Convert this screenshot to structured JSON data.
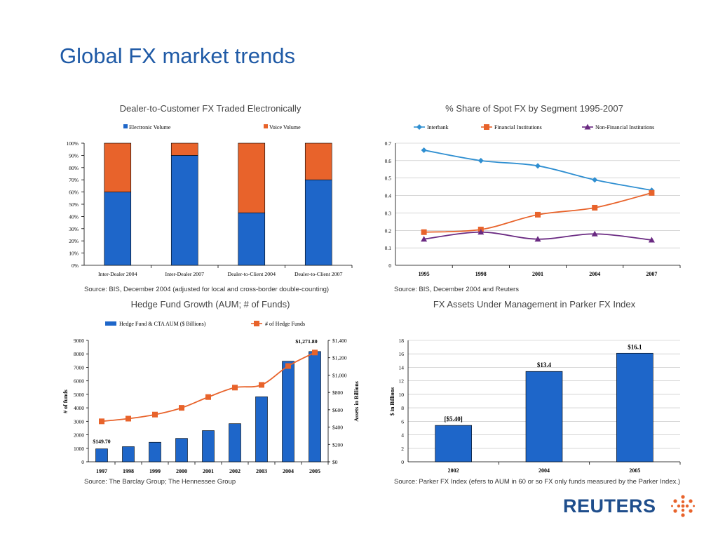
{
  "slide": {
    "title": "Global FX market trends"
  },
  "logo": {
    "text": "REUTERS",
    "mark": "reuters-dots-icon",
    "color": "#1f4e8c"
  },
  "colors": {
    "blue": "#1e66c9",
    "orange": "#e8632b",
    "interbank": "#2f8fd1",
    "purple": "#6a2a82"
  },
  "charts": {
    "c1": {
      "title": "Dealer-to-Customer FX Traded Electronically",
      "source": "Source: BIS, December 2004 (adjusted for local and cross-border double-counting)"
    },
    "c2": {
      "title": "% Share of Spot FX by Segment 1995-2007",
      "source": "Source: BIS, December 2004 and Reuters"
    },
    "c3": {
      "title": "Hedge Fund Growth  (AUM; # of Funds)",
      "source": "Source: The Barclay Group; The Hennessee Group"
    },
    "c4": {
      "title": "FX Assets Under Management in Parker FX Index",
      "source": "Source: Parker FX Index (efers to AUM in 60 or so FX only funds measured by the Parker Index.)"
    }
  },
  "chart_data": [
    {
      "type": "bar",
      "stacked": true,
      "title": "Dealer-to-Customer FX Traded Electronically",
      "categories": [
        "Inter-Dealer 2004",
        "Inter-Dealer 2007",
        "Dealer-to-Client 2004",
        "Dealer-to-Client 2007"
      ],
      "series": [
        {
          "name": "Electronic Volume",
          "values": [
            60,
            90,
            43,
            70
          ],
          "color": "#1e66c9"
        },
        {
          "name": "Voice Volume",
          "values": [
            40,
            10,
            57,
            30
          ],
          "color": "#e8632b"
        }
      ],
      "ylim": [
        0,
        100
      ],
      "yticks": [
        "0%",
        "10%",
        "20%",
        "30%",
        "40%",
        "50%",
        "60%",
        "70%",
        "80%",
        "90%",
        "100%"
      ],
      "legend": "top"
    },
    {
      "type": "line",
      "title": "% Share of Spot FX by Segment 1995-2007",
      "categories": [
        "1995",
        "1998",
        "2001",
        "2004",
        "2007"
      ],
      "series": [
        {
          "name": "Interbank",
          "values": [
            0.66,
            0.6,
            0.57,
            0.49,
            0.43
          ],
          "color": "#2f8fd1",
          "marker": "diamond"
        },
        {
          "name": "Financial Institutions",
          "values": [
            0.19,
            0.205,
            0.29,
            0.33,
            0.415
          ],
          "color": "#e8632b",
          "marker": "square"
        },
        {
          "name": "Non-Financial Institutions",
          "values": [
            0.15,
            0.19,
            0.15,
            0.18,
            0.145
          ],
          "color": "#6a2a82",
          "marker": "triangle"
        }
      ],
      "ylim": [
        0,
        0.7
      ],
      "yticks": [
        "0",
        "0.1",
        "0.2",
        "0.3",
        "0.4",
        "0.5",
        "0.6",
        "0.7"
      ],
      "grid": true,
      "legend": "top"
    },
    {
      "type": "bar",
      "title": "Hedge Fund Growth  (AUM; # of Funds)",
      "categories": [
        "1997",
        "1998",
        "1999",
        "2000",
        "2001",
        "2002",
        "2003",
        "2004",
        "2005"
      ],
      "series": [
        {
          "name": "Hedge Fund & CTA AUM ($ Billions)",
          "axis": "right",
          "type": "bar",
          "values": [
            149.7,
            175,
            225,
            270,
            360,
            440,
            750,
            1160,
            1271.8
          ],
          "color": "#1e66c9"
        },
        {
          "name": "# of Hedge Funds",
          "axis": "left",
          "type": "line",
          "values": [
            3000,
            3200,
            3500,
            4000,
            4800,
            5500,
            5700,
            7100,
            8100
          ],
          "color": "#e8632b",
          "marker": "square"
        }
      ],
      "ylabel": "# of funds",
      "y2label": "Assets in Billions",
      "ylim": [
        0,
        9000
      ],
      "y2lim": [
        0,
        1400
      ],
      "yticks": [
        "0",
        "1000",
        "2000",
        "3000",
        "4000",
        "5000",
        "6000",
        "7000",
        "8000",
        "9000"
      ],
      "y2ticks": [
        "$0",
        "$200",
        "$400",
        "$600",
        "$800",
        "$1,000",
        "$1,200",
        "$1,400"
      ],
      "annotations": [
        "$149.70",
        "$1,271.80"
      ],
      "legend": "top"
    },
    {
      "type": "bar",
      "title": "FX Assets Under Management in Parker FX Index",
      "categories": [
        "2002",
        "2004",
        "2005"
      ],
      "values": [
        5.4,
        13.4,
        16.1
      ],
      "labels": [
        "[$5.40]",
        "$13.4",
        "$16.1"
      ],
      "ylabel": "$ in Billions",
      "ylim": [
        0,
        18
      ],
      "yticks": [
        "0",
        "2",
        "4",
        "6",
        "8",
        "10",
        "12",
        "14",
        "16",
        "18"
      ],
      "color": "#1e66c9",
      "grid": true
    }
  ]
}
